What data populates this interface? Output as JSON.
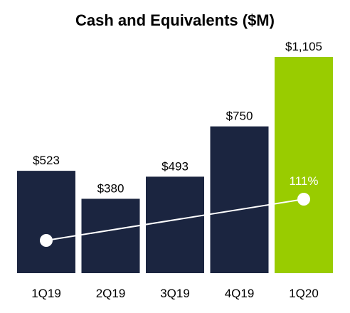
{
  "chart_data": {
    "type": "bar",
    "title": "Cash and Equivalents ($M)",
    "categories": [
      "1Q19",
      "2Q19",
      "3Q19",
      "4Q19",
      "1Q20"
    ],
    "values": [
      523,
      380,
      493,
      750,
      1105
    ],
    "value_labels": [
      "$523",
      "$380",
      "$493",
      "$750",
      "$1,105"
    ],
    "ylim": [
      0,
      1105
    ],
    "grid": false,
    "legend": "none",
    "highlight_index": 4,
    "overlay_line": {
      "type": "line",
      "from_category": "1Q19",
      "to_category": "1Q20",
      "label": "111%"
    },
    "colors": {
      "bar": "#1b2540",
      "highlight_bar": "#99cc00",
      "line": "#ffffff",
      "label_on_highlight": "#ffffff"
    }
  }
}
